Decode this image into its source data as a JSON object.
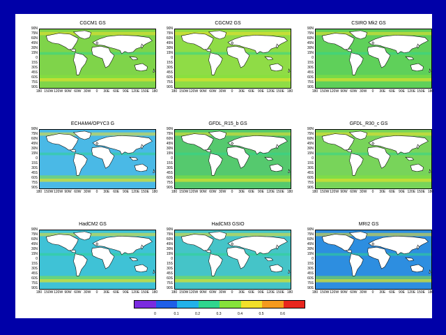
{
  "panels": [
    {
      "title": "CGCM1 GS",
      "bg": "#7fd44a"
    },
    {
      "title": "CGCM2 GS",
      "bg": "#8fdc46"
    },
    {
      "title": "CSIRO Mk2 GS",
      "bg": "#5fd05a"
    },
    {
      "title": "ECHAM4/OPYC3 G",
      "bg": "#4ab9e6"
    },
    {
      "title": "GFDL_R15_b GS",
      "bg": "#55c96e"
    },
    {
      "title": "GFDL_R30_c GS",
      "bg": "#78d45a"
    },
    {
      "title": "HadCM2 GS",
      "bg": "#3fc2d6"
    },
    {
      "title": "HadCM3 GSIO",
      "bg": "#45c4c8"
    },
    {
      "title": "MRI2 GS",
      "bg": "#2d8ee0"
    }
  ],
  "axes": {
    "y_ticks": [
      "90N",
      "75N",
      "60N",
      "45N",
      "30N",
      "15N",
      "0",
      "15S",
      "30S",
      "45S",
      "60S",
      "75S",
      "90S"
    ],
    "x_ticks": [
      "180",
      "150W",
      "120W",
      "90W",
      "60W",
      "30W",
      "0",
      "30E",
      "60E",
      "90E",
      "120E",
      "150E",
      "180"
    ]
  },
  "colorbar": {
    "colors": [
      "#7a2be0",
      "#1f5fe8",
      "#22b2ea",
      "#2fd68e",
      "#86e23a",
      "#f2e02a",
      "#f59a1e",
      "#e8261e"
    ],
    "labels": [
      "0",
      "0.1",
      "0.2",
      "0.3",
      "0.4",
      "0.5",
      "0.6"
    ]
  }
}
